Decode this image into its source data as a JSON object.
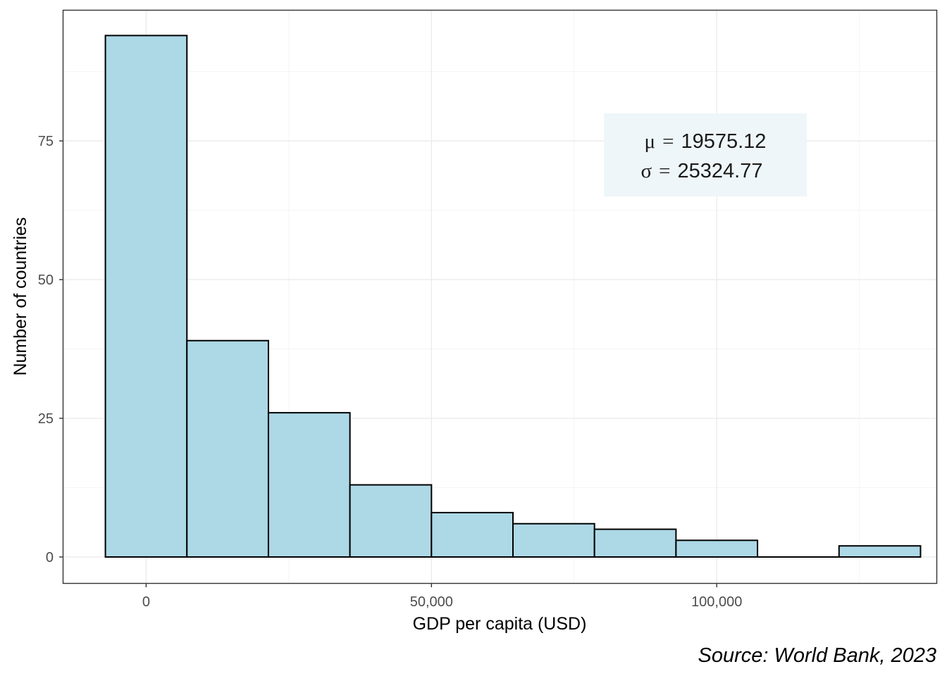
{
  "chart_data": {
    "type": "histogram",
    "title": "",
    "xlabel": "GDP per capita (USD)",
    "ylabel": "Number of countries",
    "caption": "Source: World Bank, 2023",
    "xlim": [
      -14500,
      138500
    ],
    "ylim": [
      -4.7,
      98.5
    ],
    "x_ticks": [
      0,
      50000,
      100000
    ],
    "x_tick_labels": [
      "0",
      "50,000",
      "100,000"
    ],
    "y_ticks": [
      0,
      25,
      50,
      75
    ],
    "y_tick_labels": [
      "0",
      "25",
      "50",
      "75"
    ],
    "bin_width": 14286,
    "bins": [
      {
        "x0": -7143,
        "x1": 7143,
        "count": 94
      },
      {
        "x0": 7143,
        "x1": 21429,
        "count": 39
      },
      {
        "x0": 21429,
        "x1": 35714,
        "count": 26
      },
      {
        "x0": 35714,
        "x1": 50000,
        "count": 13
      },
      {
        "x0": 50000,
        "x1": 64286,
        "count": 8
      },
      {
        "x0": 64286,
        "x1": 78571,
        "count": 6
      },
      {
        "x0": 78571,
        "x1": 92857,
        "count": 5
      },
      {
        "x0": 92857,
        "x1": 107143,
        "count": 3
      },
      {
        "x0": 107143,
        "x1": 121429,
        "count": 0
      },
      {
        "x0": 121429,
        "x1": 135714,
        "count": 2
      }
    ],
    "annotation": {
      "mean_symbol": "μ",
      "mean_label": "19575.12",
      "sd_symbol": "σ",
      "sd_label": "25324.77",
      "equals": "="
    },
    "colors": {
      "bar_fill": "#add8e6",
      "bar_stroke": "#000000",
      "annotation_fill": "#eef6f9"
    },
    "grid": true
  }
}
